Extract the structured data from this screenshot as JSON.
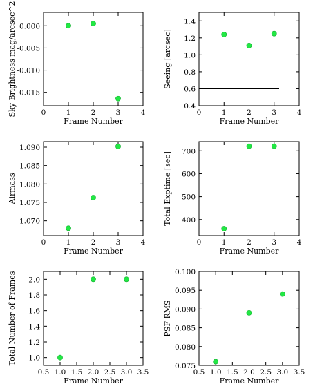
{
  "chart_data": [
    {
      "type": "scatter",
      "xlabel": "Frame Number",
      "ylabel": "Sky Brightness mag/arcsec^2",
      "xlim": [
        0,
        4
      ],
      "ylim": [
        -0.018,
        0.003
      ],
      "xticks": [
        "0",
        "1",
        "2",
        "3",
        "4"
      ],
      "yticks": [
        "0.000",
        "-0.005",
        "-0.010",
        "-0.015"
      ],
      "x": [
        1,
        2,
        3
      ],
      "y": [
        0.0,
        0.0005,
        -0.0164
      ]
    },
    {
      "type": "scatter",
      "xlabel": "Frame Number",
      "ylabel": "Seeing [arcsec]",
      "xlim": [
        0,
        4
      ],
      "ylim": [
        0.4,
        1.5
      ],
      "xticks": [
        "0",
        "1",
        "2",
        "3",
        "4"
      ],
      "yticks": [
        "0.4",
        "0.6",
        "0.8",
        "1.0",
        "1.2",
        "1.4"
      ],
      "x": [
        1,
        2,
        3
      ],
      "y": [
        1.24,
        1.11,
        1.25
      ],
      "hline": {
        "y": 0.6,
        "x_from": 0,
        "x_to": 3.2
      }
    },
    {
      "type": "scatter",
      "xlabel": "Frame Number",
      "ylabel": "Airmass",
      "xlim": [
        0,
        4
      ],
      "ylim": [
        1.066,
        1.0915
      ],
      "xticks": [
        "0",
        "1",
        "2",
        "3",
        "4"
      ],
      "yticks": [
        "1.070",
        "1.075",
        "1.080",
        "1.085",
        "1.090"
      ],
      "x": [
        1,
        2,
        3
      ],
      "y": [
        1.068,
        1.0763,
        1.0902
      ]
    },
    {
      "type": "scatter",
      "xlabel": "Frame Number",
      "ylabel": "Total Exptime [sec]",
      "xlim": [
        0,
        4
      ],
      "ylim": [
        330,
        740
      ],
      "xticks": [
        "0",
        "1",
        "2",
        "3",
        "4"
      ],
      "yticks": [
        "400",
        "500",
        "600",
        "700"
      ],
      "x": [
        1,
        2,
        3
      ],
      "y": [
        360,
        720,
        720
      ]
    },
    {
      "type": "scatter",
      "xlabel": "Frame Number",
      "ylabel": "Total Number of Frames",
      "xlim": [
        0.5,
        3.5
      ],
      "ylim": [
        0.9,
        2.1
      ],
      "xticks": [
        "0.5",
        "1.0",
        "1.5",
        "2.0",
        "2.5",
        "3.0",
        "3.5"
      ],
      "yticks": [
        "1.0",
        "1.2",
        "1.4",
        "1.6",
        "1.8",
        "2.0"
      ],
      "x": [
        1,
        2,
        3
      ],
      "y": [
        1.0,
        2.0,
        2.0
      ]
    },
    {
      "type": "scatter",
      "xlabel": "Frame Number",
      "ylabel": "PSF RMS",
      "xlim": [
        0.5,
        3.5
      ],
      "ylim": [
        0.075,
        0.1
      ],
      "xticks": [
        "0.5",
        "1.0",
        "1.5",
        "2.0",
        "2.5",
        "3.0",
        "3.5"
      ],
      "yticks": [
        "0.075",
        "0.080",
        "0.085",
        "0.090",
        "0.095",
        "0.100"
      ],
      "x": [
        1,
        2,
        3
      ],
      "y": [
        0.076,
        0.089,
        0.094
      ]
    }
  ],
  "colors": {
    "marker": "#22e844",
    "axis": "#000000"
  }
}
